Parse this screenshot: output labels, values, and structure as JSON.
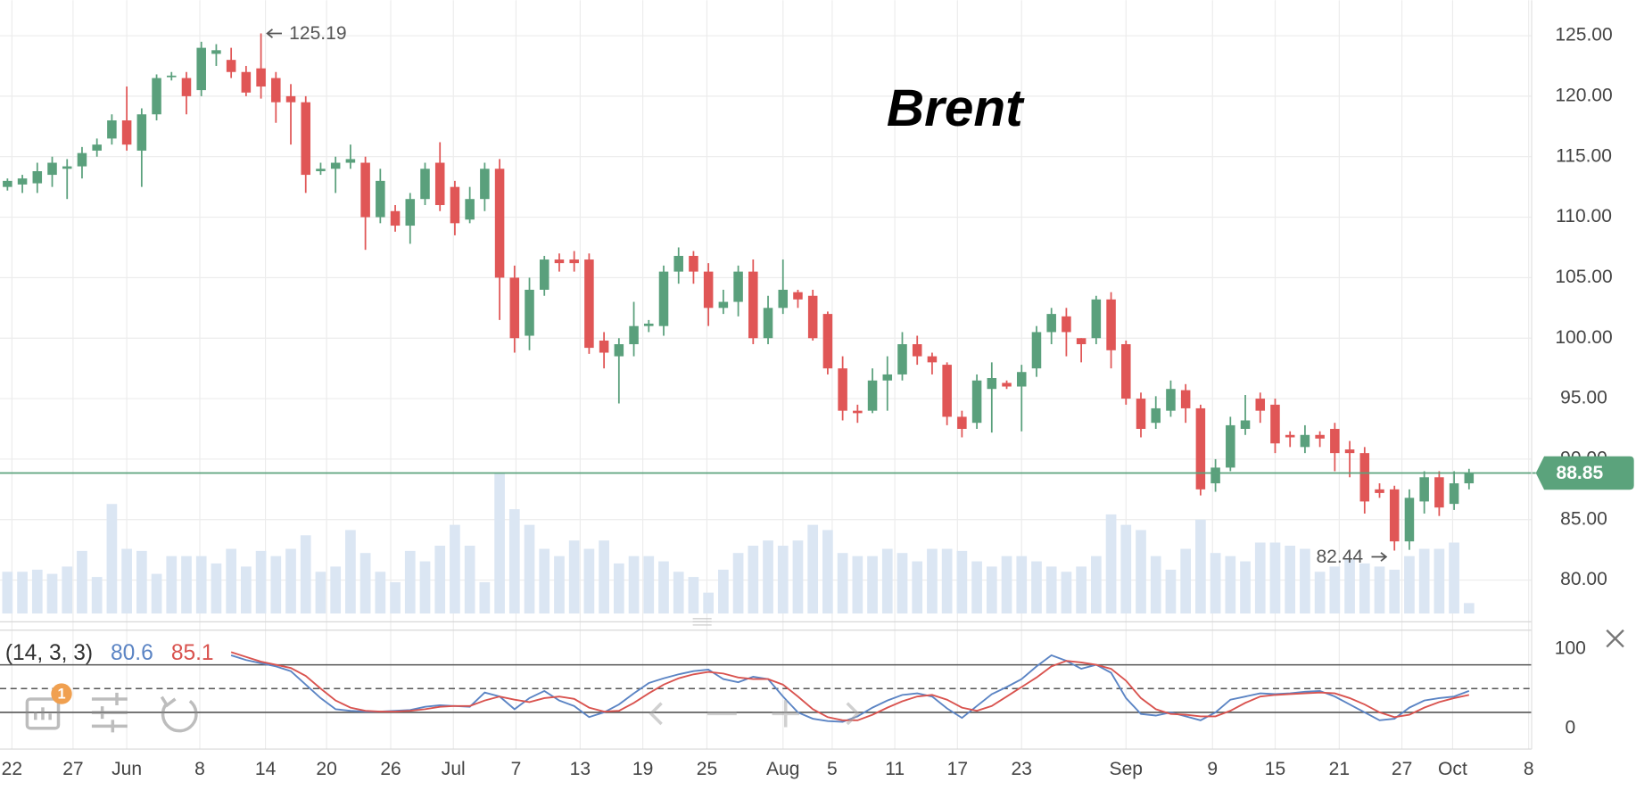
{
  "chart_data": [
    {
      "type": "candlestick",
      "title": "Brent",
      "up_color": "#5aa07c",
      "down_color": "#e05656",
      "volume_color": "#dbe6f3",
      "last_price_line": true,
      "last_price_color": "#5ba37c",
      "grid": true,
      "xlim": [
        -0.5,
        102.2
      ],
      "xticks": [
        {
          "value": 0.3,
          "label": "22"
        },
        {
          "value": 4.4,
          "label": "27"
        },
        {
          "value": 8,
          "label": "Jun"
        },
        {
          "value": 12.9,
          "label": "8"
        },
        {
          "value": 17.3,
          "label": "14"
        },
        {
          "value": 21.4,
          "label": "20"
        },
        {
          "value": 25.7,
          "label": "26"
        },
        {
          "value": 29.9,
          "label": "Jul"
        },
        {
          "value": 34.1,
          "label": "7"
        },
        {
          "value": 38.4,
          "label": "13"
        },
        {
          "value": 42.6,
          "label": "19"
        },
        {
          "value": 46.9,
          "label": "25"
        },
        {
          "value": 52,
          "label": "Aug"
        },
        {
          "value": 55.3,
          "label": "5"
        },
        {
          "value": 59.5,
          "label": "11"
        },
        {
          "value": 63.7,
          "label": "17"
        },
        {
          "value": 68,
          "label": "23"
        },
        {
          "value": 75,
          "label": "Sep"
        },
        {
          "value": 80.8,
          "label": "9"
        },
        {
          "value": 85,
          "label": "15"
        },
        {
          "value": 89.3,
          "label": "21"
        },
        {
          "value": 93.5,
          "label": "27"
        },
        {
          "value": 96.9,
          "label": "Oct"
        },
        {
          "value": 102,
          "label": "8"
        }
      ],
      "ylim": [
        77.24,
        127.93
      ],
      "yticks": [
        {
          "value": 80,
          "label": "80.00"
        },
        {
          "value": 85,
          "label": "85.00"
        },
        {
          "value": 90,
          "label": "90.00"
        },
        {
          "value": 95,
          "label": "95.00"
        },
        {
          "value": 100,
          "label": "100.00"
        },
        {
          "value": 105,
          "label": "105.00"
        },
        {
          "value": 110,
          "label": "110.00"
        },
        {
          "value": 115,
          "label": "115.00"
        },
        {
          "value": 120,
          "label": "120.00"
        },
        {
          "value": 125,
          "label": "125.00"
        }
      ],
      "open": [
        112.5,
        112.7,
        112.8,
        113.5,
        114,
        114.2,
        115.5,
        116.5,
        118,
        115.5,
        118.5,
        121.6,
        121.5,
        120.5,
        123.5,
        123,
        122,
        122.3,
        121.5,
        120,
        119.5,
        113.8,
        114,
        114.5,
        114.5,
        110,
        110.5,
        109.3,
        111.5,
        114.5,
        112.5,
        109.8,
        111.5,
        114,
        105,
        100.2,
        104,
        106.5,
        106.5,
        106.5,
        99.8,
        98.5,
        99.5,
        101,
        101,
        105.5,
        106.8,
        105.5,
        102.5,
        103,
        105.5,
        100,
        102.5,
        103.8,
        103.5,
        102,
        97.5,
        94,
        94,
        96.5,
        97,
        99.5,
        98.5,
        97.8,
        93.5,
        93,
        95.8,
        96.3,
        96,
        97.5,
        100.5,
        101.8,
        100,
        100,
        103.2,
        99.5,
        95,
        93,
        94,
        95.7,
        94.2,
        88,
        89.3,
        92.5,
        95,
        94.5,
        92,
        91,
        92,
        92.5,
        90.8,
        90.5,
        87.5,
        87.5,
        83.2,
        86.5,
        88.5,
        86.3,
        88
      ],
      "high": [
        113.2,
        113.5,
        114.5,
        115,
        114.8,
        115.8,
        116.5,
        118.5,
        120.8,
        119,
        121.8,
        122,
        122,
        124.5,
        124.3,
        124,
        122.5,
        125.19,
        122,
        121,
        120,
        114.5,
        115,
        116,
        115,
        114,
        111,
        112,
        114.5,
        116.2,
        113,
        112.5,
        114.5,
        114.8,
        106,
        105,
        106.8,
        107,
        107.2,
        107,
        100.5,
        100,
        103,
        101.5,
        106,
        107.5,
        107.2,
        106.2,
        104,
        106,
        106.5,
        103.5,
        106.5,
        104,
        104,
        102.2,
        98.5,
        94.5,
        97.5,
        98.5,
        100.5,
        100.2,
        98.8,
        98,
        94,
        97,
        98,
        96.5,
        97.8,
        101,
        102.5,
        102.5,
        100,
        103.5,
        103.8,
        99.8,
        95.5,
        95.2,
        96.5,
        96.2,
        94.5,
        90,
        93.5,
        95.3,
        95.5,
        95,
        92.3,
        92.8,
        92.3,
        93,
        91.5,
        91,
        88,
        87.8,
        87.5,
        89,
        89,
        89,
        89.2
      ],
      "low": [
        112.2,
        112,
        112,
        112.5,
        111.5,
        113.2,
        115,
        116,
        115.5,
        112.5,
        118,
        121.3,
        118.5,
        120,
        122.5,
        121.5,
        120,
        119.8,
        117.8,
        116,
        112,
        113.5,
        112,
        114,
        107.3,
        109.5,
        108.8,
        107.8,
        111,
        110.5,
        108.5,
        109.5,
        110.5,
        101.5,
        98.8,
        99,
        103.5,
        105.5,
        105.5,
        98.7,
        97.5,
        94.6,
        98.5,
        100.5,
        100.2,
        104.5,
        104.5,
        101,
        102,
        101.8,
        99.5,
        99.5,
        102,
        102.5,
        99.8,
        97,
        93.2,
        93,
        93.8,
        94,
        96.5,
        97.8,
        97,
        92.8,
        91.8,
        92.5,
        92.2,
        95.8,
        92.3,
        96.8,
        99.5,
        98.5,
        98,
        99.5,
        97.5,
        94.5,
        91.8,
        92.5,
        93.5,
        93,
        87,
        87.3,
        89,
        92,
        93,
        90.5,
        91,
        90.5,
        91,
        89,
        88.5,
        85.5,
        86.8,
        82.44,
        82.5,
        85.5,
        85.3,
        85.8,
        87.5
      ],
      "close": [
        113,
        113.2,
        113.8,
        114.5,
        114.2,
        115.3,
        116,
        118,
        116,
        118.5,
        121.5,
        121.7,
        120,
        124,
        123.8,
        122,
        120.3,
        120.8,
        119.5,
        119.5,
        113.5,
        114,
        114.5,
        114.8,
        110,
        113,
        109.3,
        111.5,
        114,
        111,
        109.5,
        111.5,
        114,
        105,
        100,
        104,
        106.5,
        106.2,
        106.2,
        99.2,
        98.8,
        99.5,
        101,
        101.2,
        105.5,
        106.8,
        105.5,
        102.5,
        103,
        105.5,
        100,
        102.5,
        104,
        103.2,
        100,
        97.5,
        94,
        93.8,
        96.5,
        97,
        99.5,
        98.5,
        98,
        93.5,
        92.5,
        96.5,
        96.7,
        96,
        97.2,
        100.5,
        102,
        100.5,
        99.5,
        103.2,
        99,
        95,
        92.5,
        94.2,
        95.8,
        94.2,
        87.5,
        89.3,
        92.8,
        93.2,
        94,
        91.3,
        91.8,
        92,
        91.7,
        90.5,
        90.5,
        86.5,
        87.2,
        83.2,
        86.8,
        88.5,
        86,
        88,
        88.85
      ],
      "volume": [
        40,
        40,
        42,
        38,
        45,
        60,
        35,
        105,
        62,
        60,
        38,
        55,
        55,
        55,
        48,
        62,
        45,
        60,
        55,
        62,
        75,
        40,
        45,
        80,
        58,
        40,
        30,
        60,
        50,
        65,
        85,
        65,
        30,
        135,
        100,
        85,
        62,
        55,
        70,
        62,
        70,
        48,
        55,
        55,
        50,
        40,
        35,
        20,
        42,
        58,
        65,
        70,
        65,
        70,
        85,
        80,
        58,
        55,
        55,
        62,
        58,
        50,
        62,
        62,
        60,
        50,
        45,
        55,
        55,
        50,
        45,
        40,
        45,
        55,
        95,
        85,
        80,
        55,
        42,
        62,
        90,
        58,
        55,
        50,
        68,
        68,
        65,
        62,
        40,
        45,
        52,
        48,
        45,
        42,
        55,
        62,
        62,
        68,
        10
      ]
    },
    {
      "type": "line",
      "title": "(14, 3, 3)",
      "ylim": [
        -26.3,
        123.7
      ],
      "yticks": [
        0,
        100
      ],
      "grid": false,
      "levels": [
        80,
        50,
        20
      ],
      "level_dashed": [
        false,
        true,
        false
      ],
      "x": [
        15,
        16,
        17,
        18,
        19,
        20,
        21,
        22,
        23,
        24,
        25,
        26,
        27,
        28,
        29,
        30,
        31,
        32,
        33,
        34,
        35,
        36,
        37,
        38,
        39,
        40,
        41,
        42,
        43,
        44,
        45,
        46,
        47,
        48,
        49,
        50,
        51,
        52,
        53,
        54,
        55,
        56,
        57,
        58,
        59,
        60,
        61,
        62,
        63,
        64,
        65,
        66,
        67,
        68,
        69,
        70,
        71,
        72,
        73,
        74,
        75,
        76,
        77,
        78,
        79,
        80,
        81,
        82,
        83,
        84,
        85,
        86,
        87,
        88,
        89,
        90,
        91,
        92,
        93,
        94,
        95,
        96,
        97,
        98
      ],
      "series": [
        {
          "color": "#5b84c4",
          "readout": 80.6,
          "values": [
            92,
            86,
            82,
            78,
            72,
            55,
            38,
            24,
            22,
            21,
            21,
            22,
            23,
            27,
            29,
            28,
            27,
            45,
            40,
            24,
            38,
            47,
            35,
            28,
            14,
            20,
            30,
            44,
            57,
            63,
            68,
            72,
            74,
            62,
            58,
            65,
            62,
            40,
            20,
            12,
            9,
            8,
            15,
            26,
            35,
            42,
            44,
            40,
            25,
            13,
            28,
            43,
            52,
            62,
            78,
            92,
            85,
            75,
            80,
            70,
            38,
            18,
            16,
            20,
            15,
            10,
            20,
            36,
            40,
            44,
            43,
            44,
            46,
            47,
            40,
            30,
            20,
            10,
            12,
            26,
            35,
            38,
            40,
            47
          ]
        },
        {
          "color": "#d9534f",
          "readout": 85.1,
          "values": [
            96,
            90,
            84,
            80,
            76,
            66,
            50,
            35,
            26,
            22,
            21,
            21,
            22,
            24,
            27,
            28,
            28,
            35,
            40,
            36,
            33,
            38,
            40,
            37,
            26,
            21,
            22,
            32,
            44,
            55,
            63,
            68,
            71,
            69,
            64,
            62,
            62,
            55,
            40,
            24,
            14,
            10,
            10,
            17,
            26,
            34,
            40,
            42,
            36,
            26,
            22,
            28,
            40,
            52,
            64,
            78,
            85,
            83,
            80,
            75,
            60,
            38,
            24,
            18,
            17,
            15,
            15,
            22,
            32,
            40,
            42,
            43,
            44,
            45,
            44,
            38,
            30,
            20,
            14,
            17,
            26,
            33,
            38,
            42
          ]
        }
      ]
    }
  ],
  "toolbar": {
    "notifications": 1
  }
}
